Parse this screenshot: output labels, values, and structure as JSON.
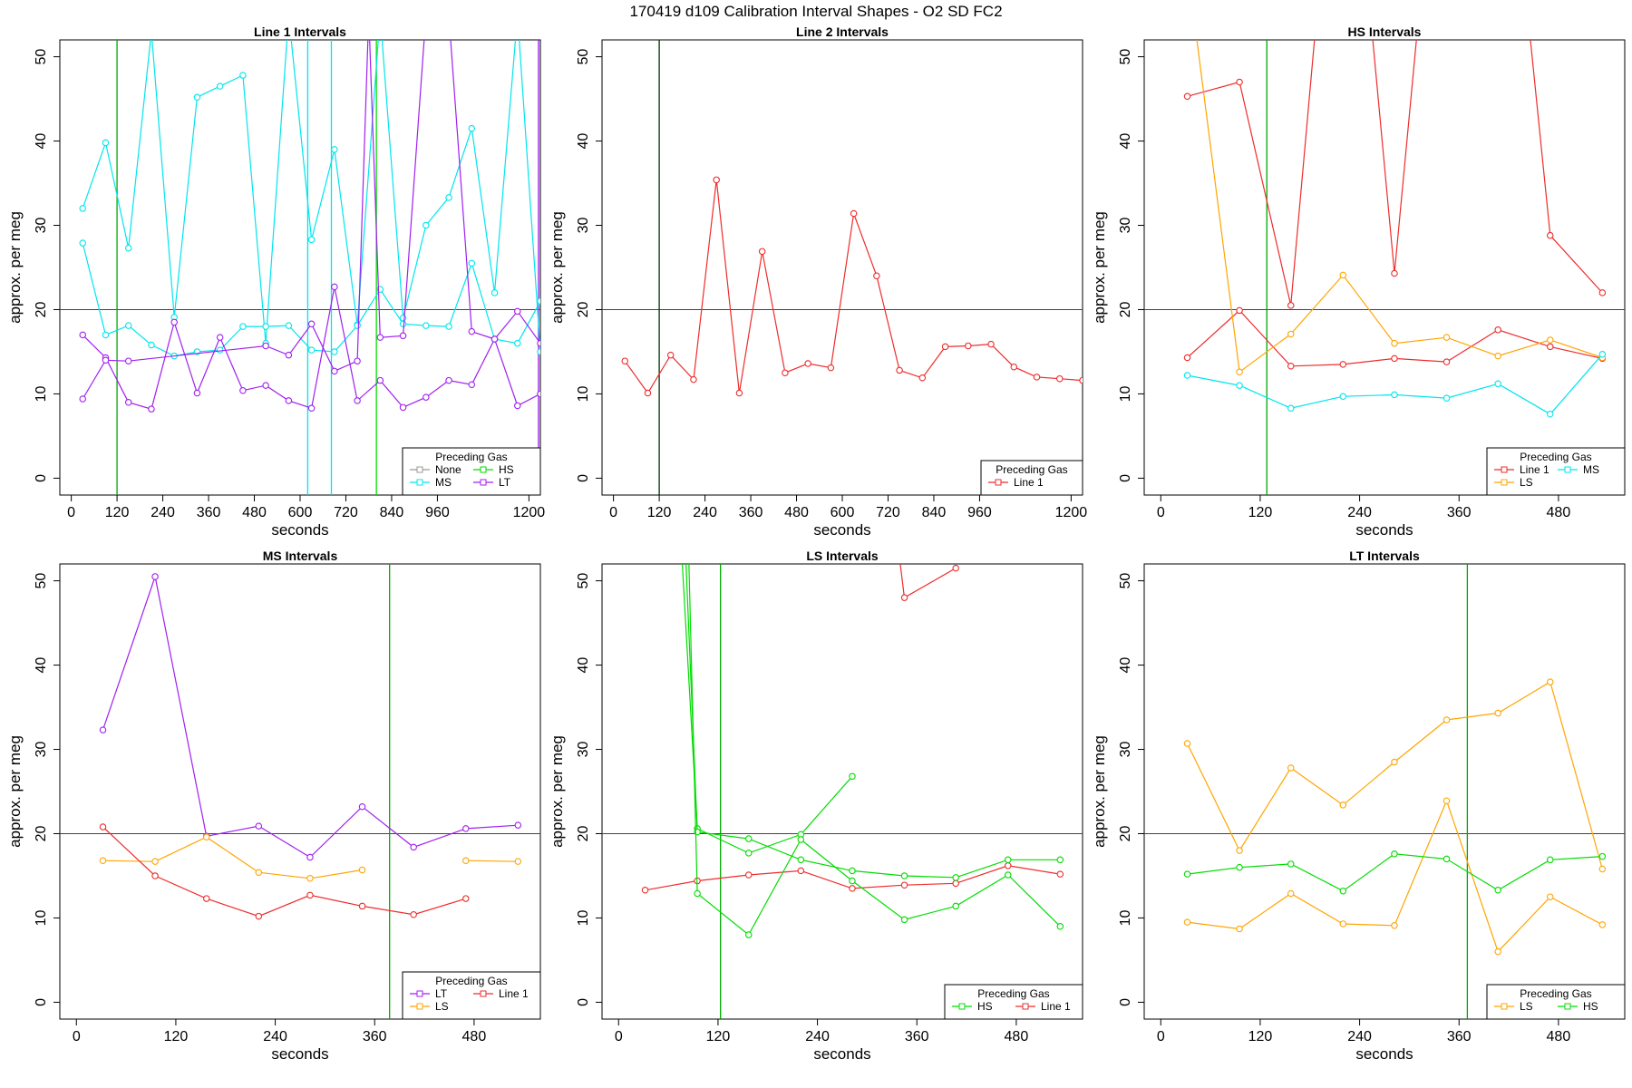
{
  "page": {
    "title": "170419   d109   Calibration Interval Shapes - O2 SD FC2"
  },
  "chart_data": [
    {
      "type": "line",
      "title": "Line 1 Intervals",
      "xlabel": "seconds",
      "ylabel": "approx. per meg",
      "xlim": [
        -30,
        1230
      ],
      "ylim": [
        -2,
        52
      ],
      "xticks": [
        0,
        120,
        240,
        360,
        480,
        600,
        720,
        840,
        960,
        1200
      ],
      "yticks": [
        0,
        10,
        20,
        30,
        40,
        50
      ],
      "hline": 20,
      "vlines": [
        {
          "x": 120,
          "color": "#00aa00"
        },
        {
          "x": 620,
          "color": "#00e5ee"
        },
        {
          "x": 682,
          "color": "#00e5ee"
        },
        {
          "x": 800,
          "color": "#00dd00"
        },
        {
          "x": 1225,
          "color": "#a020f0"
        }
      ],
      "legend": {
        "title": "Preceding Gas",
        "position": "bottom-right",
        "columns": 2,
        "entries": [
          {
            "label": "None",
            "color": "#999999"
          },
          {
            "label": "HS",
            "color": "#00dd00"
          },
          {
            "label": "MS",
            "color": "#00e5ee"
          },
          {
            "label": "LT",
            "color": "#a020f0"
          }
        ]
      },
      "series": [
        {
          "name": "MS",
          "color": "#00e5ee",
          "x": [
            30,
            90,
            150,
            210,
            270,
            330,
            390,
            450,
            510,
            570,
            630,
            690,
            750,
            810,
            870,
            930,
            990,
            1050,
            1110,
            1170,
            1230
          ],
          "y": [
            32,
            39.8,
            27.3,
            53,
            19.1,
            45.2,
            46.5,
            47.8,
            16,
            55,
            28.3,
            39,
            18.2,
            55,
            19,
            30,
            33.3,
            41.5,
            22,
            55,
            15
          ]
        },
        {
          "name": "MS",
          "color": "#00e5ee",
          "x": [
            30,
            90,
            150,
            210,
            270,
            330,
            390,
            450,
            510,
            570,
            630,
            690,
            750,
            810,
            870,
            930,
            990,
            1050,
            1110,
            1170,
            1230
          ],
          "y": [
            27.9,
            17,
            18.1,
            15.8,
            14.5,
            15,
            15.2,
            18,
            18,
            18.1,
            15.2,
            15,
            18.1,
            22.4,
            18.3,
            18.1,
            18,
            25.5,
            16.5,
            16,
            21
          ]
        },
        {
          "name": "LT",
          "color": "#a020f0",
          "x": [
            30,
            90,
            150,
            210,
            270,
            330,
            390,
            450,
            510,
            570,
            630,
            690,
            750,
            810,
            870,
            930,
            990,
            1050,
            1110,
            1170,
            1230
          ],
          "y": [
            17,
            14.3,
            9,
            8.2,
            18.5,
            10.1,
            16.7,
            10.4,
            11,
            9.2,
            8.3,
            22.7,
            9.2,
            11.6,
            8.4,
            9.6,
            11.6,
            11.1,
            16.5,
            8.6,
            10
          ]
        },
        {
          "name": "LT",
          "color": "#a020f0",
          "x": [
            30,
            90,
            150,
            510,
            570,
            630,
            690,
            750,
            780,
            810,
            870,
            930,
            990,
            1050,
            1110,
            1170,
            1230
          ],
          "y": [
            9.4,
            14,
            13.9,
            15.7,
            14.6,
            18.3,
            12.7,
            13.9,
            55,
            16.7,
            16.9,
            55,
            55,
            17.4,
            16.5,
            19.8,
            16
          ]
        }
      ]
    },
    {
      "type": "line",
      "title": "Line 2 Intervals",
      "xlabel": "seconds",
      "ylabel": "approx. per meg",
      "xlim": [
        -30,
        1230
      ],
      "ylim": [
        -2,
        52
      ],
      "xticks": [
        0,
        120,
        240,
        360,
        480,
        600,
        720,
        840,
        960,
        1200
      ],
      "yticks": [
        0,
        10,
        20,
        30,
        40,
        50
      ],
      "hline": 20,
      "vlines": [
        {
          "x": 120,
          "color": "#003300"
        }
      ],
      "legend": {
        "title": "Preceding Gas",
        "position": "bottom-right",
        "columns": 1,
        "entries": [
          {
            "label": "Line 1",
            "color": "#ee2c2c"
          }
        ]
      },
      "series": [
        {
          "name": "Line 1",
          "color": "#ee2c2c",
          "x": [
            30,
            90,
            150,
            210,
            270,
            330,
            390,
            450,
            510,
            570,
            630,
            690,
            750,
            810,
            870,
            930,
            990,
            1050,
            1110,
            1170,
            1230
          ],
          "y": [
            13.9,
            10.1,
            14.6,
            11.7,
            35.4,
            10.1,
            26.9,
            12.5,
            13.6,
            13.1,
            31.4,
            24,
            12.8,
            11.9,
            15.6,
            15.7,
            15.9,
            13.2,
            12,
            11.8,
            11.6
          ]
        }
      ]
    },
    {
      "type": "line",
      "title": "HS Intervals",
      "xlabel": "seconds",
      "ylabel": "approx. per meg",
      "xlim": [
        -20,
        560
      ],
      "ylim": [
        -2,
        52
      ],
      "xticks": [
        0,
        120,
        240,
        360,
        480
      ],
      "yticks": [
        0,
        10,
        20,
        30,
        40,
        50
      ],
      "hline": 20,
      "vlines": [
        {
          "x": 128,
          "color": "#00aa00"
        }
      ],
      "legend": {
        "title": "Preceding Gas",
        "position": "bottom-right",
        "columns": 2,
        "entries": [
          {
            "label": "Line 1",
            "color": "#ee2c2c"
          },
          {
            "label": "MS",
            "color": "#00e5ee"
          },
          {
            "label": "LS",
            "color": "#ffa500"
          }
        ]
      },
      "series": [
        {
          "name": "Line 1",
          "color": "#ee2c2c",
          "x": [
            32,
            95,
            157,
            220,
            282,
            345,
            407,
            470,
            533
          ],
          "y": [
            45.3,
            47,
            20.5,
            90,
            24.3,
            90,
            90,
            28.8,
            22
          ]
        },
        {
          "name": "Line 1",
          "color": "#ee2c2c",
          "x": [
            32,
            95,
            157,
            220,
            282,
            345,
            407,
            470,
            533
          ],
          "y": [
            14.3,
            19.9,
            13.3,
            13.5,
            14.2,
            13.8,
            17.6,
            15.6,
            14.2
          ]
        },
        {
          "name": "LS",
          "color": "#ffa500",
          "x": [
            20,
            95,
            157,
            220,
            282,
            345,
            407,
            470,
            533
          ],
          "y": [
            70,
            12.6,
            17.1,
            24.1,
            16,
            16.7,
            14.5,
            16.4,
            14.3
          ]
        },
        {
          "name": "MS",
          "color": "#00e5ee",
          "x": [
            32,
            95,
            157,
            220,
            282,
            345,
            407,
            470,
            533
          ],
          "y": [
            12.2,
            11,
            8.3,
            9.7,
            9.9,
            9.5,
            11.2,
            7.6,
            14.7
          ]
        }
      ]
    },
    {
      "type": "line",
      "title": "MS Intervals",
      "xlabel": "seconds",
      "ylabel": "approx. per meg",
      "xlim": [
        -20,
        560
      ],
      "ylim": [
        -2,
        52
      ],
      "xticks": [
        0,
        120,
        240,
        360,
        480
      ],
      "yticks": [
        0,
        10,
        20,
        30,
        40,
        50
      ],
      "hline": 20,
      "vlines": [
        {
          "x": 378,
          "color": "#00aa00"
        }
      ],
      "legend": {
        "title": "Preceding Gas",
        "position": "bottom-right",
        "columns": 2,
        "entries": [
          {
            "label": "LT",
            "color": "#a020f0"
          },
          {
            "label": "Line 1",
            "color": "#ee2c2c"
          },
          {
            "label": "LS",
            "color": "#ffa500"
          }
        ]
      },
      "series": [
        {
          "name": "LT",
          "color": "#a020f0",
          "x": [
            32,
            95,
            157,
            220,
            282,
            345,
            407,
            470,
            533
          ],
          "y": [
            32.3,
            50.5,
            19.7,
            20.9,
            17.2,
            23.2,
            18.4,
            20.6,
            21
          ]
        },
        {
          "name": "LS",
          "color": "#ffa500",
          "x": [
            32,
            95,
            157,
            220,
            282,
            345,
            407,
            470,
            533
          ],
          "y": [
            16.8,
            16.7,
            19.6,
            15.4,
            14.7,
            15.7,
            null,
            16.8,
            16.7
          ]
        },
        {
          "name": "Line 1",
          "color": "#ee2c2c",
          "x": [
            32,
            95,
            157,
            220,
            282,
            345,
            407,
            470
          ],
          "y": [
            20.8,
            15,
            12.3,
            10.2,
            12.7,
            11.4,
            10.4,
            12.3
          ]
        }
      ]
    },
    {
      "type": "line",
      "title": "LS Intervals",
      "xlabel": "seconds",
      "ylabel": "approx. per meg",
      "xlim": [
        -20,
        560
      ],
      "ylim": [
        -2,
        52
      ],
      "xticks": [
        0,
        120,
        240,
        360,
        480
      ],
      "yticks": [
        0,
        10,
        20,
        30,
        40,
        50
      ],
      "hline": 20,
      "vlines": [
        {
          "x": 123,
          "color": "#00aa00"
        }
      ],
      "legend": {
        "title": "Preceding Gas",
        "position": "bottom-right",
        "columns": 2,
        "entries": [
          {
            "label": "HS",
            "color": "#00dd00"
          },
          {
            "label": "Line 1",
            "color": "#ee2c2c"
          }
        ]
      },
      "series": [
        {
          "name": "Line 1",
          "color": "#ee2c2c",
          "x": [
            32,
            95,
            157,
            220,
            282,
            345,
            407,
            470,
            533
          ],
          "y": [
            13.3,
            14.4,
            15.1,
            15.6,
            13.5,
            13.9,
            14.1,
            16.2,
            15.2
          ]
        },
        {
          "name": "Line 1",
          "color": "#ee2c2c",
          "x": [
            330,
            345,
            407
          ],
          "y": [
            60,
            48,
            51.5
          ]
        },
        {
          "name": "HS",
          "color": "#00dd00",
          "x": [
            55,
            95,
            157,
            220,
            282
          ],
          "y": [
            90,
            20.6,
            17.7,
            19.9,
            26.8
          ]
        },
        {
          "name": "HS",
          "color": "#00dd00",
          "x": [
            65,
            95,
            157,
            220,
            282,
            345,
            407,
            470,
            533
          ],
          "y": [
            90,
            20.2,
            19.4,
            16.9,
            15.6,
            15,
            14.8,
            16.9,
            16.9
          ]
        },
        {
          "name": "HS",
          "color": "#00dd00",
          "x": [
            75,
            95,
            157,
            220,
            282,
            345,
            407,
            470,
            533
          ],
          "y": [
            90,
            12.9,
            8,
            19.3,
            14.4,
            9.8,
            11.4,
            15.1,
            9
          ]
        }
      ]
    },
    {
      "type": "line",
      "title": "LT Intervals",
      "xlabel": "seconds",
      "ylabel": "approx. per meg",
      "xlim": [
        -20,
        560
      ],
      "ylim": [
        -2,
        52
      ],
      "xticks": [
        0,
        120,
        240,
        360,
        480
      ],
      "yticks": [
        0,
        10,
        20,
        30,
        40,
        50
      ],
      "hline": 20,
      "vlines": [
        {
          "x": 370,
          "color": "#00aa00"
        }
      ],
      "legend": {
        "title": "Preceding Gas",
        "position": "bottom-right",
        "columns": 2,
        "entries": [
          {
            "label": "LS",
            "color": "#ffa500"
          },
          {
            "label": "HS",
            "color": "#00dd00"
          }
        ]
      },
      "series": [
        {
          "name": "LS",
          "color": "#ffa500",
          "x": [
            32,
            95,
            157,
            220,
            282,
            345,
            407,
            470,
            533
          ],
          "y": [
            30.7,
            18,
            27.8,
            23.4,
            28.5,
            33.5,
            34.3,
            38,
            15.8
          ]
        },
        {
          "name": "LS",
          "color": "#ffa500",
          "x": [
            32,
            95,
            157,
            220,
            282,
            345,
            407,
            470,
            533
          ],
          "y": [
            9.5,
            8.7,
            12.9,
            9.3,
            9.1,
            23.9,
            6,
            12.5,
            9.2
          ]
        },
        {
          "name": "HS",
          "color": "#00dd00",
          "x": [
            32,
            95,
            157,
            220,
            282,
            345,
            407,
            470,
            533
          ],
          "y": [
            15.2,
            16,
            16.4,
            13.2,
            17.6,
            17,
            13.3,
            16.9,
            17.3
          ]
        }
      ]
    }
  ]
}
